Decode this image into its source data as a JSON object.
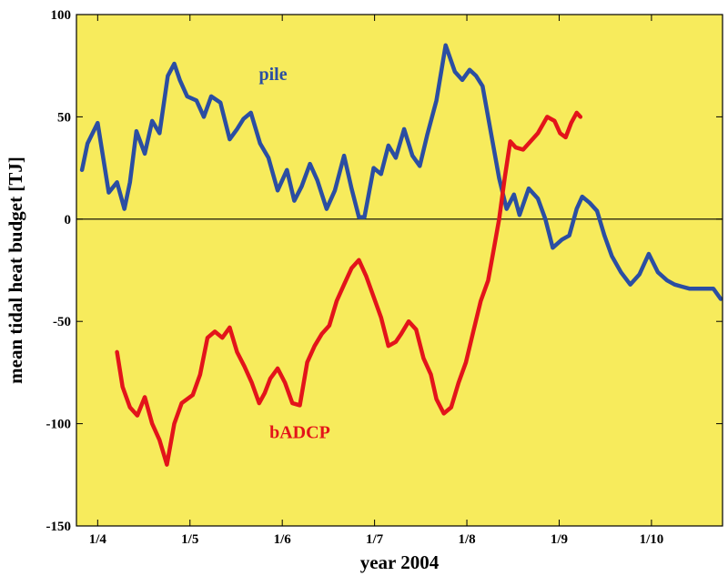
{
  "chart_data": {
    "type": "line",
    "xlabel": "year 2004",
    "ylabel": "mean tidal heat budget [TJ]",
    "xlim": [
      0,
      7
    ],
    "ylim": [
      -150,
      100
    ],
    "x_ticks": [
      {
        "value": 0.23,
        "label": "1/4"
      },
      {
        "value": 1.23,
        "label": "1/5"
      },
      {
        "value": 2.23,
        "label": "1/6"
      },
      {
        "value": 3.23,
        "label": "1/7"
      },
      {
        "value": 4.23,
        "label": "1/8"
      },
      {
        "value": 5.23,
        "label": "1/9"
      },
      {
        "value": 6.23,
        "label": "1/10"
      }
    ],
    "y_ticks": [
      {
        "value": 100,
        "label": "100"
      },
      {
        "value": 50,
        "label": "50"
      },
      {
        "value": 0,
        "label": "0"
      },
      {
        "value": -50,
        "label": "-50"
      },
      {
        "value": -100,
        "label": "-100"
      },
      {
        "value": -150,
        "label": "-150"
      }
    ],
    "zero_line": true,
    "background": "#f7eb5c",
    "series": [
      {
        "name": "pile",
        "color": "#2b4ea2",
        "label_at": {
          "x": 2.13,
          "y": 68
        },
        "x": [
          0.06,
          0.12,
          0.23,
          0.35,
          0.44,
          0.52,
          0.58,
          0.65,
          0.74,
          0.82,
          0.9,
          0.99,
          1.06,
          1.12,
          1.2,
          1.3,
          1.38,
          1.46,
          1.56,
          1.66,
          1.74,
          1.81,
          1.89,
          1.99,
          2.08,
          2.18,
          2.28,
          2.36,
          2.44,
          2.53,
          2.61,
          2.71,
          2.8,
          2.9,
          2.98,
          3.06,
          3.12,
          3.22,
          3.3,
          3.38,
          3.46,
          3.55,
          3.64,
          3.72,
          3.8,
          3.9,
          4.0,
          4.1,
          4.18,
          4.26,
          4.33,
          4.4,
          4.5,
          4.58,
          4.66,
          4.74,
          4.8,
          4.9,
          5.0,
          5.08,
          5.16,
          5.26,
          5.34,
          5.42,
          5.48,
          5.56,
          5.64,
          5.72,
          5.8,
          5.9,
          6.0,
          6.1,
          6.2,
          6.3,
          6.4,
          6.48,
          6.56,
          6.64,
          6.74,
          6.82,
          6.9,
          6.98
        ],
        "y": [
          24,
          37,
          47,
          13,
          18,
          5,
          18,
          43,
          32,
          48,
          42,
          70,
          76,
          68,
          60,
          58,
          50,
          60,
          57,
          39,
          44,
          49,
          52,
          37,
          30,
          14,
          24,
          9,
          16,
          27,
          19,
          5,
          14,
          31,
          15,
          1,
          1,
          25,
          22,
          36,
          30,
          44,
          31,
          26,
          41,
          58,
          85,
          72,
          68,
          73,
          70,
          65,
          40,
          20,
          5,
          12,
          2,
          15,
          10,
          0,
          -14,
          -10,
          -8,
          5,
          11,
          8,
          4,
          -8,
          -18,
          -26,
          -32,
          -27,
          -17,
          -26,
          -30,
          -32,
          -33,
          -34,
          -34,
          -34,
          -34,
          -39
        ]
      },
      {
        "name": "bADCP",
        "color": "#e3141a",
        "label_at": {
          "x": 2.42,
          "y": -107
        },
        "x": [
          0.44,
          0.5,
          0.58,
          0.66,
          0.74,
          0.82,
          0.9,
          0.98,
          1.06,
          1.14,
          1.2,
          1.26,
          1.34,
          1.42,
          1.5,
          1.58,
          1.66,
          1.74,
          1.82,
          1.9,
          1.98,
          2.04,
          2.1,
          2.18,
          2.26,
          2.34,
          2.42,
          2.5,
          2.58,
          2.66,
          2.74,
          2.82,
          2.9,
          2.98,
          3.06,
          3.14,
          3.22,
          3.3,
          3.38,
          3.46,
          3.52,
          3.6,
          3.68,
          3.76,
          3.84,
          3.9,
          3.98,
          4.06,
          4.14,
          4.22,
          4.3,
          4.38,
          4.46,
          4.52,
          4.58,
          4.64,
          4.7,
          4.76,
          4.84,
          4.92,
          5.0,
          5.1,
          5.18,
          5.24,
          5.3,
          5.36,
          5.42,
          5.46
        ],
        "y": [
          -65,
          -82,
          -92,
          -96,
          -87,
          -100,
          -108,
          -120,
          -100,
          -90,
          -88,
          -86,
          -76,
          -58,
          -55,
          -58,
          -53,
          -65,
          -72,
          -80,
          -90,
          -85,
          -78,
          -73,
          -80,
          -90,
          -91,
          -70,
          -62,
          -56,
          -52,
          -40,
          -32,
          -24,
          -20,
          -28,
          -38,
          -48,
          -62,
          -60,
          -56,
          -50,
          -54,
          -68,
          -76,
          -88,
          -95,
          -92,
          -80,
          -70,
          -55,
          -40,
          -30,
          -15,
          0,
          20,
          38,
          35,
          34,
          38,
          42,
          50,
          48,
          42,
          40,
          47,
          52,
          50
        ]
      }
    ]
  }
}
